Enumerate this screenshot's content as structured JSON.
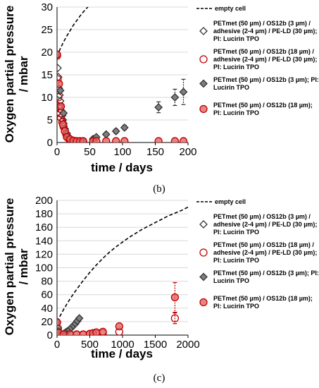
{
  "colors": {
    "black_series": "#333333",
    "black_fill": "#7f7f7f",
    "red_series": "#c00000",
    "red_fill": "#e06666",
    "empty_cell": "#000000",
    "grid": "#d9d9d9"
  },
  "chart_data": [
    {
      "panel_label": "(b)",
      "type": "scatter",
      "xlabel": "time / days",
      "ylabel": [
        "Oxygen partial pressure",
        "/ mbar"
      ],
      "xlim": [
        0,
        200
      ],
      "ylim": [
        0,
        30
      ],
      "xticks": [
        "0",
        "50",
        "100",
        "150",
        "200"
      ],
      "yticks": [
        "0",
        "5",
        "10",
        "15",
        "20",
        "25",
        "30"
      ],
      "grid": true,
      "legend_placement": "right",
      "legend": [
        {
          "label": "empty cell",
          "marker": "dashed-line"
        },
        {
          "label": "PETmet (50 µm) / OS12b (3 µm) / adhesive (2-4 µm) / PE-LD (30 µm); PI: Lucirin TPO",
          "marker": "open-diamond"
        },
        {
          "label": "PETmet (50 µm) / OS12b (18 µm) / adhesive (2-4 µm) / PE-LD (30 µm); PI: Lucirin TPO",
          "marker": "open-circle"
        },
        {
          "label": "PETmet (50 µm) / OS12b (3 µm); PI: Lucirin TPO",
          "marker": "filled-diamond"
        },
        {
          "label": "PETmet (50 µm) / OS12b (18 µm); PI: Lucirin TPO",
          "marker": "filled-circle"
        }
      ],
      "series": [
        {
          "name": "empty cell",
          "style": "dashed-line",
          "x": [
            0,
            2,
            5,
            10,
            15,
            20,
            25,
            30,
            35,
            40,
            45,
            50
          ],
          "y": [
            19,
            19.8,
            20.8,
            22.3,
            23.6,
            24.8,
            26,
            27,
            28,
            28.9,
            29.7,
            30.5
          ]
        },
        {
          "name": "PETmet (50 µm) / OS12b (3 µm) / adhesive (2-4 µm) / PE-LD (30 µm); PI: Lucirin TPO",
          "marker": "open-diamond",
          "x": [
            0,
            1,
            2,
            3,
            4,
            5,
            6,
            7,
            8,
            9,
            10,
            12,
            14,
            16,
            18,
            20,
            25,
            30,
            35,
            40
          ],
          "y": [
            19.3,
            16.5,
            14.5,
            12,
            10.5,
            9.2,
            8,
            7,
            6,
            5,
            4.2,
            3,
            2.1,
            1.5,
            1,
            0.7,
            0.4,
            0.3,
            0.3,
            0.3
          ]
        },
        {
          "name": "PETmet (50 µm) / OS12b (18 µm) / adhesive (2-4 µm) / PE-LD (30 µm); PI: Lucirin TPO",
          "marker": "open-circle",
          "x": [
            0,
            1,
            2,
            3,
            4,
            5,
            6,
            8,
            10,
            12,
            14,
            16,
            18,
            20,
            25,
            30,
            35,
            40
          ],
          "y": [
            19.2,
            14,
            10,
            8,
            7.5,
            6.5,
            5.5,
            4.5,
            3.5,
            2.5,
            1.8,
            1.2,
            0.8,
            0.5,
            0.3,
            0.2,
            0.2,
            0.2
          ]
        },
        {
          "name": "PETmet (50 µm) / OS12b (3 µm); PI: Lucirin TPO",
          "marker": "filled-diamond",
          "x": [
            0,
            5,
            10,
            15,
            20,
            28,
            35,
            40,
            55,
            60,
            75,
            90,
            103,
            155,
            180,
            193
          ],
          "y": [
            19.5,
            11.5,
            6.5,
            2,
            0.5,
            0.3,
            0.2,
            0.3,
            0.8,
            1.2,
            1.8,
            2.5,
            3.3,
            7.8,
            10,
            11.2
          ],
          "yerr": [
            0,
            0,
            0,
            0,
            0,
            0,
            0,
            0,
            0.4,
            0.4,
            0.4,
            0.5,
            0.5,
            1.2,
            1.8,
            2.8
          ]
        },
        {
          "name": "PETmet (50 µm) / OS12b (18 µm); PI: Lucirin TPO",
          "marker": "filled-circle",
          "x": [
            0,
            3,
            6,
            9,
            12,
            15,
            20,
            25,
            30,
            35,
            40,
            55,
            60,
            75,
            90,
            103,
            155,
            180,
            193
          ],
          "y": [
            19.5,
            13,
            8,
            4,
            2.5,
            1.2,
            0.7,
            0.4,
            0.3,
            0.3,
            0.3,
            0.3,
            0.3,
            0.3,
            0.3,
            0.3,
            0.3,
            0.3,
            0.3
          ]
        }
      ]
    },
    {
      "panel_label": "(c)",
      "type": "scatter",
      "xlabel": "time / days",
      "ylabel": [
        "Oxygen partial pressure",
        "/ mbar"
      ],
      "xlim": [
        0,
        2000
      ],
      "ylim": [
        0,
        200
      ],
      "xticks": [
        "0",
        "500",
        "1000",
        "1500",
        "2000"
      ],
      "yticks": [
        "0",
        "20",
        "40",
        "60",
        "80",
        "100",
        "120",
        "140",
        "160",
        "180",
        "200"
      ],
      "grid": true,
      "legend_placement": "right",
      "legend": [
        {
          "label": "empty cell",
          "marker": "dashed-line"
        },
        {
          "label": "PETmet (50 µm) / OS12b (3 µm) / adhesive (2-4 µm) / PE-LD (30 µm); PI: Lucirin TPO",
          "marker": "open-diamond"
        },
        {
          "label": "PETmet (50 µm) / OS12b (18 µm) / adhesive (2-4 µm) / PE-LD (30 µm); PI: Lucirin TPO",
          "marker": "open-circle"
        },
        {
          "label": "PETmet (50 µm) / OS12b (3 µm); PI: Lucirin TPO",
          "marker": "filled-diamond"
        },
        {
          "label": "PETmet (50 µm) / OS12b (18 µm); PI: Lucirin TPO",
          "marker": "filled-circle"
        }
      ],
      "series": [
        {
          "name": "empty cell",
          "style": "dashed-line",
          "x": [
            0,
            100,
            200,
            300,
            400,
            500,
            600,
            700,
            800,
            900,
            1000,
            1100,
            1200,
            1300,
            1400,
            1500,
            1600,
            1700,
            1800,
            1900,
            2000
          ],
          "y": [
            20,
            38,
            54,
            68,
            81,
            93,
            104,
            114,
            123,
            131,
            138,
            145,
            151,
            157,
            162,
            167,
            172,
            177,
            181,
            185,
            190
          ]
        },
        {
          "name": "PETmet (50 µm) / OS12b (3 µm) / adhesive (2-4 µm) / PE-LD (30 µm); PI: Lucirin TPO",
          "marker": "open-diamond",
          "x": [
            0,
            10,
            20,
            40
          ],
          "y": [
            19,
            10,
            3,
            1
          ]
        },
        {
          "name": "PETmet (50 µm) / OS12b (18 µm) / adhesive (2-4 µm) / PE-LD (30 µm); PI: Lucirin TPO",
          "marker": "open-circle",
          "x": [
            0,
            15,
            40,
            100,
            200,
            300,
            400,
            500,
            550,
            600,
            700,
            950,
            1800
          ],
          "y": [
            19,
            10,
            2,
            1,
            1,
            1,
            1,
            1,
            1.5,
            2,
            3,
            5,
            25
          ],
          "yerr": [
            0,
            0,
            0,
            0,
            0,
            0,
            0,
            0,
            0,
            0,
            0,
            0,
            8
          ]
        },
        {
          "name": "PETmet (50 µm) / OS12b (3 µm); PI: Lucirin TPO",
          "marker": "filled-diamond",
          "x": [
            0,
            20,
            60,
            100,
            130,
            160,
            190,
            220,
            250,
            280,
            310,
            340
          ],
          "y": [
            19,
            6,
            1,
            2,
            4,
            6,
            8,
            11,
            14,
            17,
            21,
            25
          ]
        },
        {
          "name": "PETmet (50 µm) / OS12b (18 µm); PI: Lucirin TPO",
          "marker": "filled-circle",
          "x": [
            0,
            30,
            100,
            200,
            300,
            400,
            500,
            550,
            600,
            700,
            950,
            1800
          ],
          "y": [
            19,
            3,
            1,
            1,
            1,
            1,
            2,
            3,
            4,
            5,
            13,
            56
          ],
          "yerr": [
            0,
            0,
            0,
            0,
            0,
            0,
            0,
            0,
            0,
            0,
            0,
            22
          ]
        }
      ]
    }
  ]
}
